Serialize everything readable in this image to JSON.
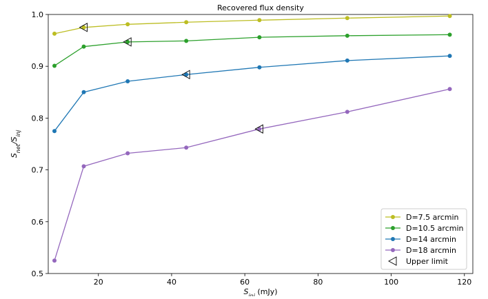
{
  "chart_data": {
    "type": "line",
    "title": "Recovered flux density",
    "xlabel": [
      "S",
      "inj",
      " (mJy)"
    ],
    "ylabel": [
      "S",
      "net",
      "/S",
      "inj"
    ],
    "x": [
      8,
      16,
      28,
      44,
      64,
      88,
      116
    ],
    "series": [
      {
        "name": "D=7.5 arcmin",
        "color": "#bcbd22",
        "marker": "circle",
        "values": [
          0.963,
          0.975,
          0.981,
          0.985,
          0.989,
          0.993,
          0.997
        ]
      },
      {
        "name": "D=10.5 arcmin",
        "color": "#2ca02c",
        "marker": "circle",
        "values": [
          0.901,
          0.938,
          0.947,
          0.949,
          0.956,
          0.959,
          0.961
        ]
      },
      {
        "name": "D=14 arcmin",
        "color": "#1f77b4",
        "marker": "circle",
        "values": [
          0.775,
          0.85,
          0.871,
          0.884,
          0.898,
          0.911,
          0.92
        ]
      },
      {
        "name": "D=18 arcmin",
        "color": "#9467bd",
        "marker": "circle",
        "values": [
          0.525,
          0.707,
          0.732,
          0.743,
          0.779,
          0.812,
          0.856
        ]
      },
      {
        "name": "Upper limit",
        "color": "#000000",
        "marker": "triangle-left",
        "x": [
          16,
          28,
          44,
          64
        ],
        "values": [
          0.975,
          0.947,
          0.884,
          0.779
        ]
      }
    ],
    "xlim": [
      6.3,
      122.3
    ],
    "xticks": [
      20,
      40,
      60,
      80,
      100,
      120
    ],
    "ylim": [
      0.5,
      1
    ],
    "yticks": [
      0.5,
      0.6,
      0.7,
      0.8,
      0.9,
      {
        "value": 1,
        "label": "1.0"
      }
    ],
    "grid": false,
    "legend": "lower right"
  }
}
